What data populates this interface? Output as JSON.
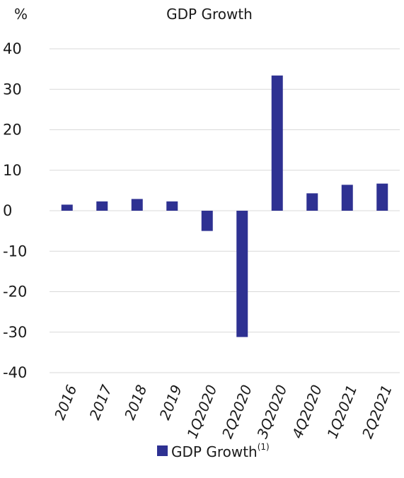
{
  "chart_data": {
    "type": "bar",
    "title": "GDP Growth",
    "unit_label": "%",
    "categories": [
      "2016",
      "2017",
      "2018",
      "2019",
      "1Q2020",
      "2Q2020",
      "3Q2020",
      "4Q2020",
      "1Q2021",
      "2Q2021"
    ],
    "series": [
      {
        "name": "GDP Growth",
        "name_superscript": "(1)",
        "color": "#2e3192",
        "values": [
          1.5,
          2.3,
          2.9,
          2.3,
          -5.0,
          -31.2,
          33.4,
          4.3,
          6.4,
          6.7
        ]
      }
    ],
    "ylim": [
      -40,
      40
    ],
    "yticks": [
      "40",
      "30",
      "20",
      "10",
      "0",
      "-10",
      "-20",
      "-30",
      "-40"
    ],
    "grid": true,
    "legend_position": "bottom-center"
  }
}
